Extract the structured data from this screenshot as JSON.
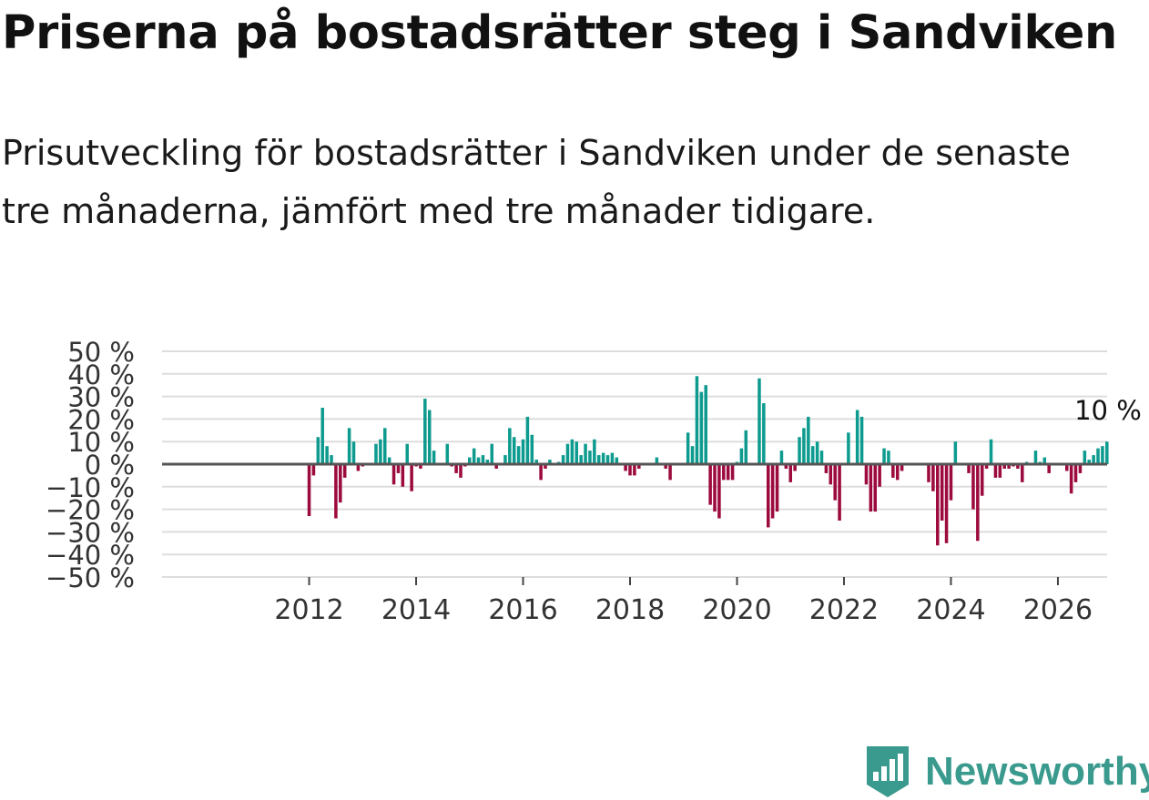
{
  "header": {
    "title": "Priserna på bostadsrätter steg i Sandviken",
    "subtitle": "Prisutveckling för bostadsrätter i Sandviken under de senaste tre månaderna, jämfört med tre månader tidigare."
  },
  "brand": {
    "name": "Newsworthy",
    "color": "#3a9a8e",
    "icon": "newsworthy-logo-icon"
  },
  "colors": {
    "positive": "#0e9b8f",
    "negative": "#9c0a3e",
    "grid": "#dddddd",
    "zero_line": "#555555",
    "text": "#333333"
  },
  "chart_data": {
    "type": "bar",
    "title": "Priserna på bostadsrätter steg i Sandviken",
    "xlabel": "",
    "ylabel": "",
    "ylim": [
      -50,
      50
    ],
    "xlim": [
      2009.25,
      2026.92
    ],
    "y_ticks": [
      -50,
      -40,
      -30,
      -20,
      -10,
      0,
      10,
      20,
      30,
      40,
      50
    ],
    "y_tick_labels": [
      "−50 %",
      "−40 %",
      "−30 %",
      "−20 %",
      "−10 %",
      "0 %",
      "10 %",
      "20 %",
      "30 %",
      "40 %",
      "50 %"
    ],
    "x_ticks": [
      2012,
      2014,
      2016,
      2018,
      2020,
      2022,
      2024,
      2026
    ],
    "x_tick_labels": [
      "2012",
      "2014",
      "2016",
      "2018",
      "2020",
      "2022",
      "2024",
      "2026"
    ],
    "grid": true,
    "start_year": 2012,
    "start_month": 1,
    "values": [
      -23,
      -5,
      12,
      25,
      8,
      4,
      -24,
      -17,
      -6,
      16,
      10,
      -3,
      -1,
      0,
      0,
      9,
      11,
      16,
      3,
      -9,
      -4,
      -10,
      9,
      -12,
      -1,
      -2,
      29,
      24,
      6,
      0,
      0,
      9,
      -1,
      -4,
      -6,
      -1,
      3,
      7,
      3,
      4,
      2,
      9,
      -2,
      0,
      4,
      16,
      12,
      8,
      11,
      21,
      13,
      2,
      -7,
      -2,
      2,
      0,
      1,
      4,
      9,
      11,
      10,
      4,
      9,
      6,
      11,
      4,
      5,
      4,
      5,
      3,
      0,
      -3,
      -5,
      -5,
      -2,
      0,
      0,
      0,
      3,
      0,
      -2,
      -7,
      0,
      0,
      0,
      14,
      8,
      39,
      32,
      35,
      -18,
      -21,
      -24,
      -7,
      -7,
      -7,
      1,
      7,
      15,
      0,
      0,
      38,
      27,
      -28,
      -24,
      -21,
      6,
      -2,
      -8,
      -3,
      12,
      16,
      21,
      8,
      10,
      6,
      -4,
      -9,
      -16,
      -25,
      0,
      14,
      0,
      24,
      21,
      -9,
      -21,
      -21,
      -10,
      7,
      6,
      -6,
      -7,
      -3,
      0,
      0,
      0,
      0,
      0,
      -8,
      -12,
      -36,
      -25,
      -35,
      -16,
      10,
      0,
      0,
      -4,
      -20,
      -34,
      -14,
      -2,
      11,
      -6,
      -6,
      -2,
      -2,
      -1,
      -2,
      -8,
      1,
      0,
      6,
      1,
      3,
      -4,
      0,
      0,
      0,
      -3,
      -13,
      -8,
      -4,
      6,
      2,
      4,
      7,
      8,
      10
    ],
    "annotations": [
      {
        "text": "10 %",
        "target": "last-value"
      }
    ]
  }
}
